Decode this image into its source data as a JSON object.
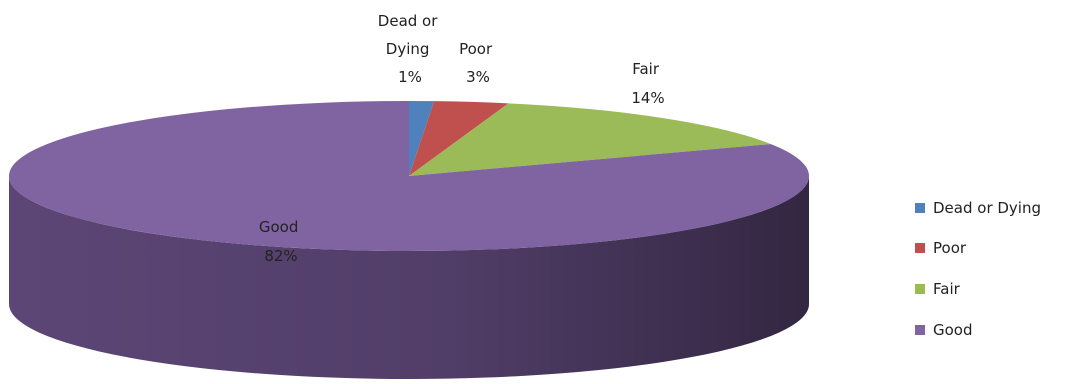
{
  "chart_data": {
    "type": "pie",
    "style": "3d",
    "title": "",
    "slices": [
      {
        "name": "Dead or Dying",
        "value": 1,
        "label": "1%",
        "color": "#4f81bd",
        "side_color": "#3a6090"
      },
      {
        "name": "Poor",
        "value": 3,
        "label": "3%",
        "color": "#c0504d",
        "side_color": "#8f3432"
      },
      {
        "name": "Fair",
        "value": 14,
        "label": "14%",
        "color": "#9bbb59",
        "side_color": "#6f8a3b"
      },
      {
        "name": "Good",
        "value": 82,
        "label": "82%",
        "color": "#8064a2",
        "side_color": "#5c4676"
      }
    ],
    "legend": {
      "placement": "right",
      "items": [
        "Dead or Dying",
        "Poor",
        "Fair",
        "Good"
      ]
    },
    "data_labels": [
      {
        "lines": [
          "Dead or",
          "Dying",
          "1%"
        ]
      },
      {
        "lines": [
          "Poor",
          "3%"
        ]
      },
      {
        "lines": [
          "Fair",
          "14%"
        ]
      },
      {
        "lines": [
          "Good",
          "82%"
        ]
      }
    ]
  }
}
